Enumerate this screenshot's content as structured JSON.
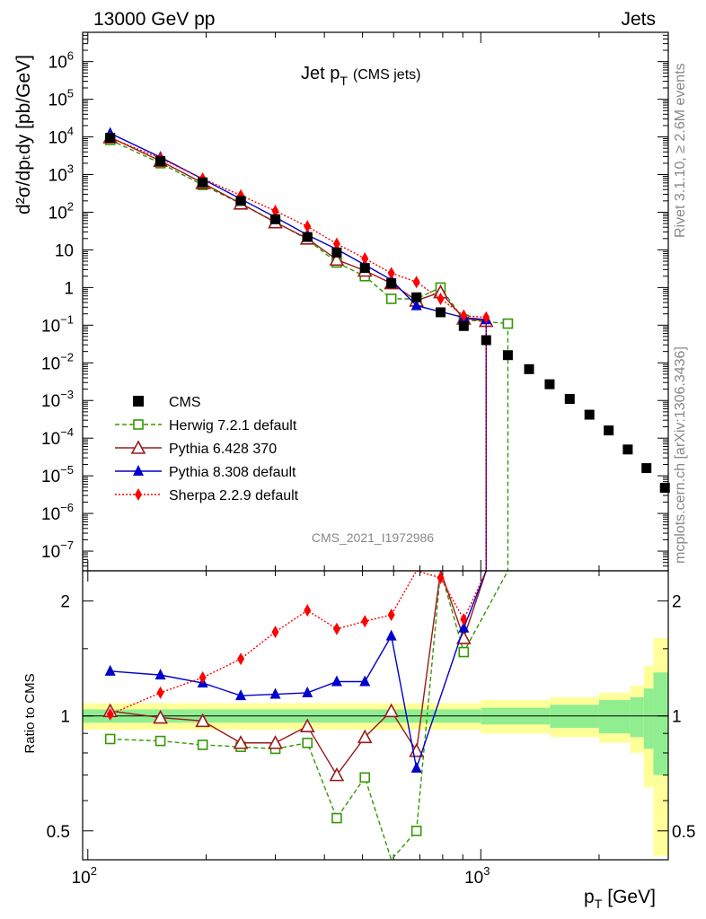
{
  "header": {
    "left": "13000 GeV pp",
    "right": "Jets"
  },
  "side": {
    "rivet": "Rivet 3.1.10, ≥ 2.6M events",
    "mcplots": "mcplots.cern.ch [arXiv:1306.3436]"
  },
  "plot": {
    "title_main": "Jet p",
    "title_sub": "T",
    "title_extra": "(CMS jets)",
    "ylabel": "d²σ/dpₜdy [pb/GeV]",
    "ratio_ylabel": "Ratio to CMS",
    "xlabel_main": "p",
    "xlabel_sub": "T",
    "xlabel_unit": "[GeV]",
    "watermark": "CMS_2021_I1972986"
  },
  "chart_data": {
    "type": "scatter",
    "xscale": "log",
    "yscale": "log",
    "xlim": [
      97,
      3000
    ],
    "ylim": [
      3e-08,
      6000000
    ],
    "ratio_ylim": [
      0.42,
      2.4
    ],
    "legend_position": "bottom-left",
    "x_ticks": [
      {
        "value": 100,
        "label": "10",
        "sup": "2"
      },
      {
        "value": 1000,
        "label": "10",
        "sup": "3"
      }
    ],
    "y_ticks": [
      {
        "value": 1000000,
        "label": "10",
        "sup": "6"
      },
      {
        "value": 100000,
        "label": "10",
        "sup": "5"
      },
      {
        "value": 10000,
        "label": "10",
        "sup": "4"
      },
      {
        "value": 1000,
        "label": "10",
        "sup": "3"
      },
      {
        "value": 100,
        "label": "10",
        "sup": "2"
      },
      {
        "value": 10,
        "label": "10",
        "sup": ""
      },
      {
        "value": 1,
        "label": "1",
        "sup": ""
      },
      {
        "value": 0.1,
        "label": "10",
        "sup": "−1"
      },
      {
        "value": 0.01,
        "label": "10",
        "sup": "−2"
      },
      {
        "value": 0.001,
        "label": "10",
        "sup": "−3"
      },
      {
        "value": 0.0001,
        "label": "10",
        "sup": "−4"
      },
      {
        "value": 1e-05,
        "label": "10",
        "sup": "−5"
      },
      {
        "value": 1e-06,
        "label": "10",
        "sup": "−6"
      },
      {
        "value": 1e-07,
        "label": "10",
        "sup": "−7"
      }
    ],
    "ratio_ticks": [
      {
        "value": 2,
        "label": "2"
      },
      {
        "value": 1,
        "label": "1"
      },
      {
        "value": 0.5,
        "label": "0.5"
      }
    ],
    "bands": [
      {
        "x0": 97,
        "x1": 1000,
        "in": 0.04,
        "out": 0.08
      },
      {
        "x0": 1000,
        "x1": 1500,
        "in": 0.05,
        "out": 0.1
      },
      {
        "x0": 1500,
        "x1": 2000,
        "in": 0.07,
        "out": 0.12
      },
      {
        "x0": 2000,
        "x1": 2400,
        "in": 0.1,
        "out": 0.15
      },
      {
        "x0": 2400,
        "x1": 2600,
        "in": 0.12,
        "out": 0.2
      },
      {
        "x0": 2600,
        "x1": 2750,
        "in": 0.18,
        "out": 0.35
      },
      {
        "x0": 2750,
        "x1": 3000,
        "in": 0.3,
        "out": 0.6
      }
    ],
    "cms": {
      "name": "CMS",
      "color": "#000000",
      "x": [
        114,
        153,
        196,
        245,
        300,
        362,
        430,
        507,
        592,
        686,
        790,
        905,
        1032,
        1172,
        1327,
        1497,
        1684,
        1890,
        2116,
        2366,
        2640,
        2941
      ],
      "y": [
        9500,
        2300,
        620,
        200,
        65,
        22,
        8.5,
        3.3,
        1.3,
        0.55,
        0.22,
        0.095,
        0.04,
        0.016,
        0.0068,
        0.0027,
        0.0011,
        0.00042,
        0.00016,
        5e-05,
        1.6e-05,
        4.8e-06
      ]
    },
    "series": [
      {
        "name": "Herwig 7.2.1 default",
        "color": "#339900",
        "marker": "square-open",
        "dash": "5,3",
        "x": [
          114,
          153,
          196,
          245,
          300,
          362,
          430,
          507,
          592,
          686,
          790,
          905,
          1172
        ],
        "y": [
          8300,
          2000,
          530,
          170,
          55,
          19,
          4.6,
          2.0,
          0.5,
          0.5,
          1.0,
          0.14,
          0.11
        ],
        "ratio": [
          0.87,
          0.86,
          0.84,
          0.83,
          0.82,
          0.85,
          0.54,
          0.69,
          0.33,
          0.5,
          2.6,
          1.47,
          6.0
        ]
      },
      {
        "name": "Pythia 6.428 370",
        "color": "#991a1a",
        "marker": "triangle-open",
        "dash": "",
        "x": [
          114,
          153,
          196,
          245,
          300,
          362,
          430,
          507,
          592,
          686,
          790,
          905,
          1032
        ],
        "y": [
          9800,
          2300,
          600,
          170,
          54,
          20,
          5.5,
          2.8,
          1.3,
          0.45,
          0.75,
          0.15,
          0.13
        ],
        "ratio": [
          1.03,
          0.99,
          0.97,
          0.85,
          0.85,
          0.94,
          0.7,
          0.88,
          1.03,
          0.81,
          3.4,
          1.6,
          3.2
        ]
      },
      {
        "name": "Pythia 8.308 default",
        "color": "#0000cc",
        "marker": "triangle-filled",
        "dash": "",
        "x": [
          114,
          153,
          196,
          245,
          300,
          362,
          430,
          507,
          592,
          686,
          905,
          1032
        ],
        "y": [
          12500,
          2900,
          760,
          225,
          74,
          25,
          10.4,
          4.0,
          1.6,
          0.33,
          0.16,
          0.14
        ],
        "ratio": [
          1.31,
          1.28,
          1.22,
          1.13,
          1.14,
          1.15,
          1.23,
          1.23,
          1.62,
          0.73,
          1.7,
          3.4
        ]
      },
      {
        "name": "Sherpa 2.2.9 default",
        "color": "#ff0000",
        "marker": "diamond-filled",
        "dash": "2,2",
        "x": [
          114,
          153,
          196,
          245,
          300,
          362,
          430,
          507,
          592,
          686,
          790,
          905,
          1032
        ],
        "y": [
          9500,
          2700,
          780,
          280,
          108,
          42,
          14.5,
          5.9,
          2.4,
          1.4,
          0.5,
          0.18,
          0.16
        ],
        "ratio": [
          1.01,
          1.15,
          1.26,
          1.41,
          1.66,
          1.89,
          1.69,
          1.77,
          1.84,
          2.6,
          2.3,
          1.79,
          3.4
        ]
      }
    ]
  }
}
